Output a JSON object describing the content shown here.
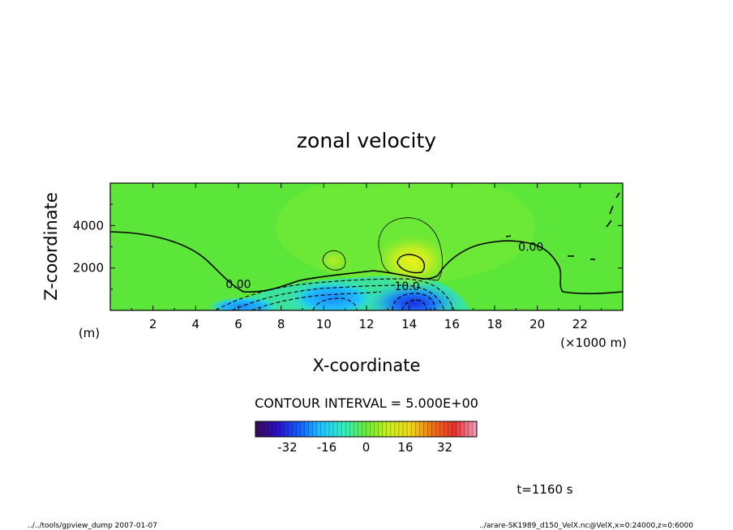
{
  "chart_data": {
    "type": "heatmap",
    "title": "zonal velocity",
    "xlabel": "X-coordinate",
    "ylabel": "Z-coordinate",
    "x_unit": "(×1000 m)",
    "y_unit": "(m)",
    "xlim": [
      0,
      24
    ],
    "ylim": [
      0,
      6000
    ],
    "x_ticks": [
      "2",
      "4",
      "6",
      "8",
      "10",
      "12",
      "14",
      "16",
      "18",
      "20",
      "22"
    ],
    "y_ticks": [
      "2000",
      "4000"
    ],
    "x_tick_values": [
      2,
      4,
      6,
      8,
      10,
      12,
      14,
      16,
      18,
      20,
      22
    ],
    "y_tick_values": [
      2000,
      4000
    ],
    "contour_interval_text": "CONTOUR INTERVAL = 5.000E+00",
    "contour_labels": [
      {
        "text": "0.00",
        "x": 6.0,
        "z": 1250
      },
      {
        "text": "0.00",
        "x": 19.7,
        "z": 3000
      },
      {
        "text": "10.0",
        "x": 13.9,
        "z": 1150
      }
    ],
    "color_scale": {
      "min": -45,
      "max": 45,
      "ticks": [
        "-32",
        "-16",
        "0",
        "16",
        "32"
      ],
      "tick_values": [
        -32,
        -16,
        0,
        16,
        32
      ],
      "colors": [
        "#3a0a52",
        "#2b10c8",
        "#1060ff",
        "#20c8ff",
        "#30f0c0",
        "#6aec36",
        "#c8ee1c",
        "#f0d81a",
        "#f07010",
        "#e83030",
        "#f0a0c0"
      ]
    },
    "features": [
      {
        "kind": "background",
        "value": 5,
        "region": "most of domain"
      },
      {
        "kind": "maximum",
        "x": 14.2,
        "z": 2300,
        "value": 20
      },
      {
        "kind": "maximum",
        "x": 10.5,
        "z": 2300,
        "value": 10
      },
      {
        "kind": "minimum",
        "x": 14.2,
        "z": 400,
        "value": -30
      },
      {
        "kind": "minimum",
        "x": 10.5,
        "z": 700,
        "value": -20
      },
      {
        "kind": "minimum",
        "x": 7.5,
        "z": 200,
        "value": -15
      }
    ]
  },
  "footer": {
    "time": "t=1160 s",
    "left": "../../tools/gpview_dump  2007-01-07",
    "right": "../arare-SK1989_d150_VelX.nc@VelX,x=0:24000,z=0:6000"
  }
}
